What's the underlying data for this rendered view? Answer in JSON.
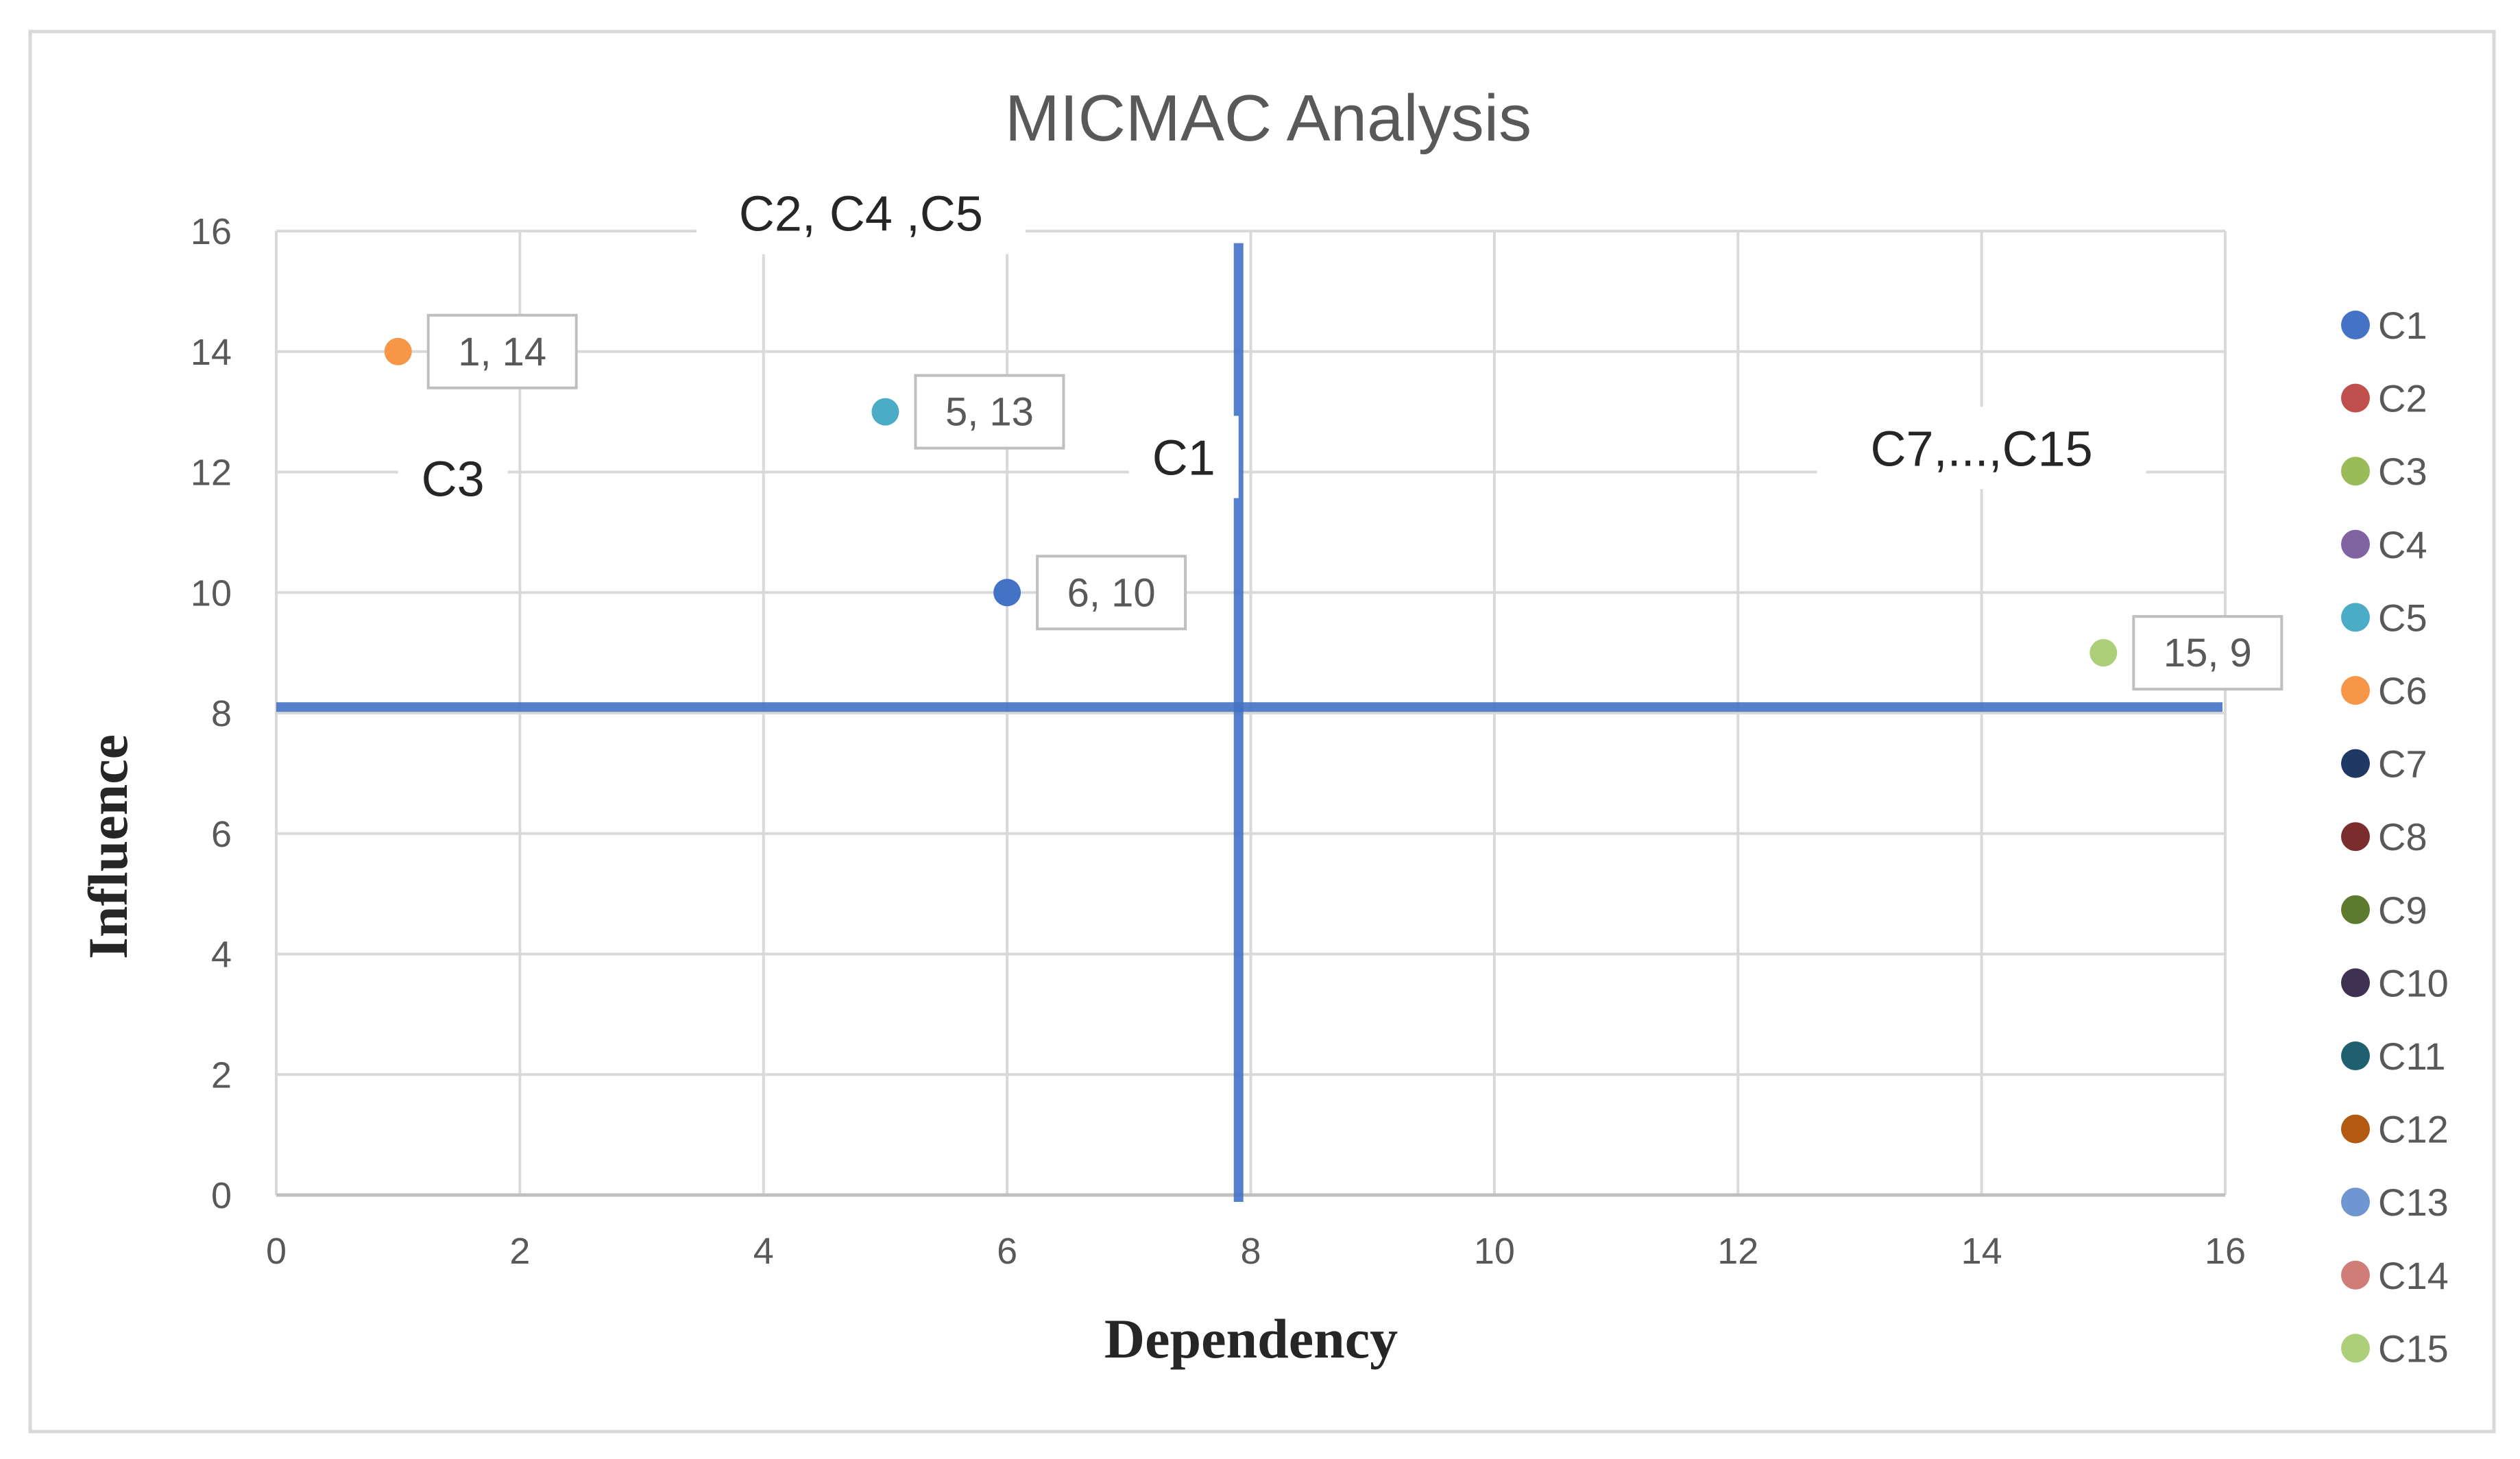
{
  "chart_data": {
    "type": "scatter",
    "title": "MICMAC Analysis",
    "xlabel": "Dependency",
    "ylabel": "Influence",
    "xlim": [
      0,
      16
    ],
    "ylim": [
      0,
      16
    ],
    "xticks": [
      0,
      2,
      4,
      6,
      8,
      10,
      12,
      14,
      16
    ],
    "yticks": [
      0,
      2,
      4,
      6,
      8,
      10,
      12,
      14,
      16
    ],
    "grid": true,
    "legend_position": "right",
    "quadrant_lines": {
      "x": 7.9,
      "y": 8.1,
      "color": "#4472C4"
    },
    "series": [
      {
        "name": "C1",
        "color": "#4472C4",
        "points": [
          {
            "x": 6,
            "y": 10,
            "label": "6, 10"
          }
        ]
      },
      {
        "name": "C2",
        "color": "#C0504D",
        "points": []
      },
      {
        "name": "C3",
        "color": "#9BBB59",
        "points": []
      },
      {
        "name": "C4",
        "color": "#8064A2",
        "points": []
      },
      {
        "name": "C5",
        "color": "#4BACC6",
        "points": [
          {
            "x": 5,
            "y": 13,
            "label": "5, 13"
          }
        ]
      },
      {
        "name": "C6",
        "color": "#F79646",
        "points": [
          {
            "x": 1,
            "y": 14,
            "label": "1, 14"
          }
        ]
      },
      {
        "name": "C7",
        "color": "#1F3864",
        "points": []
      },
      {
        "name": "C8",
        "color": "#7B2C2C",
        "points": []
      },
      {
        "name": "C9",
        "color": "#5E7A2E",
        "points": []
      },
      {
        "name": "C10",
        "color": "#3F3151",
        "points": []
      },
      {
        "name": "C11",
        "color": "#1E6070",
        "points": []
      },
      {
        "name": "C12",
        "color": "#B35A12",
        "points": []
      },
      {
        "name": "C13",
        "color": "#6F96D0",
        "points": []
      },
      {
        "name": "C14",
        "color": "#D07C79",
        "points": []
      },
      {
        "name": "C15",
        "color": "#AECF7A",
        "points": [
          {
            "x": 15,
            "y": 9,
            "label": "15, 9"
          }
        ]
      }
    ],
    "annotations": [
      {
        "text": "C2, C4 ,C5",
        "x": 4.8,
        "y": 16.05
      },
      {
        "text": "C3",
        "x": 1.45,
        "y": 11.65
      },
      {
        "text": "C1",
        "x": 7.45,
        "y": 12.0
      },
      {
        "text": "C7,...,C15",
        "x": 14.0,
        "y": 12.15
      }
    ]
  }
}
